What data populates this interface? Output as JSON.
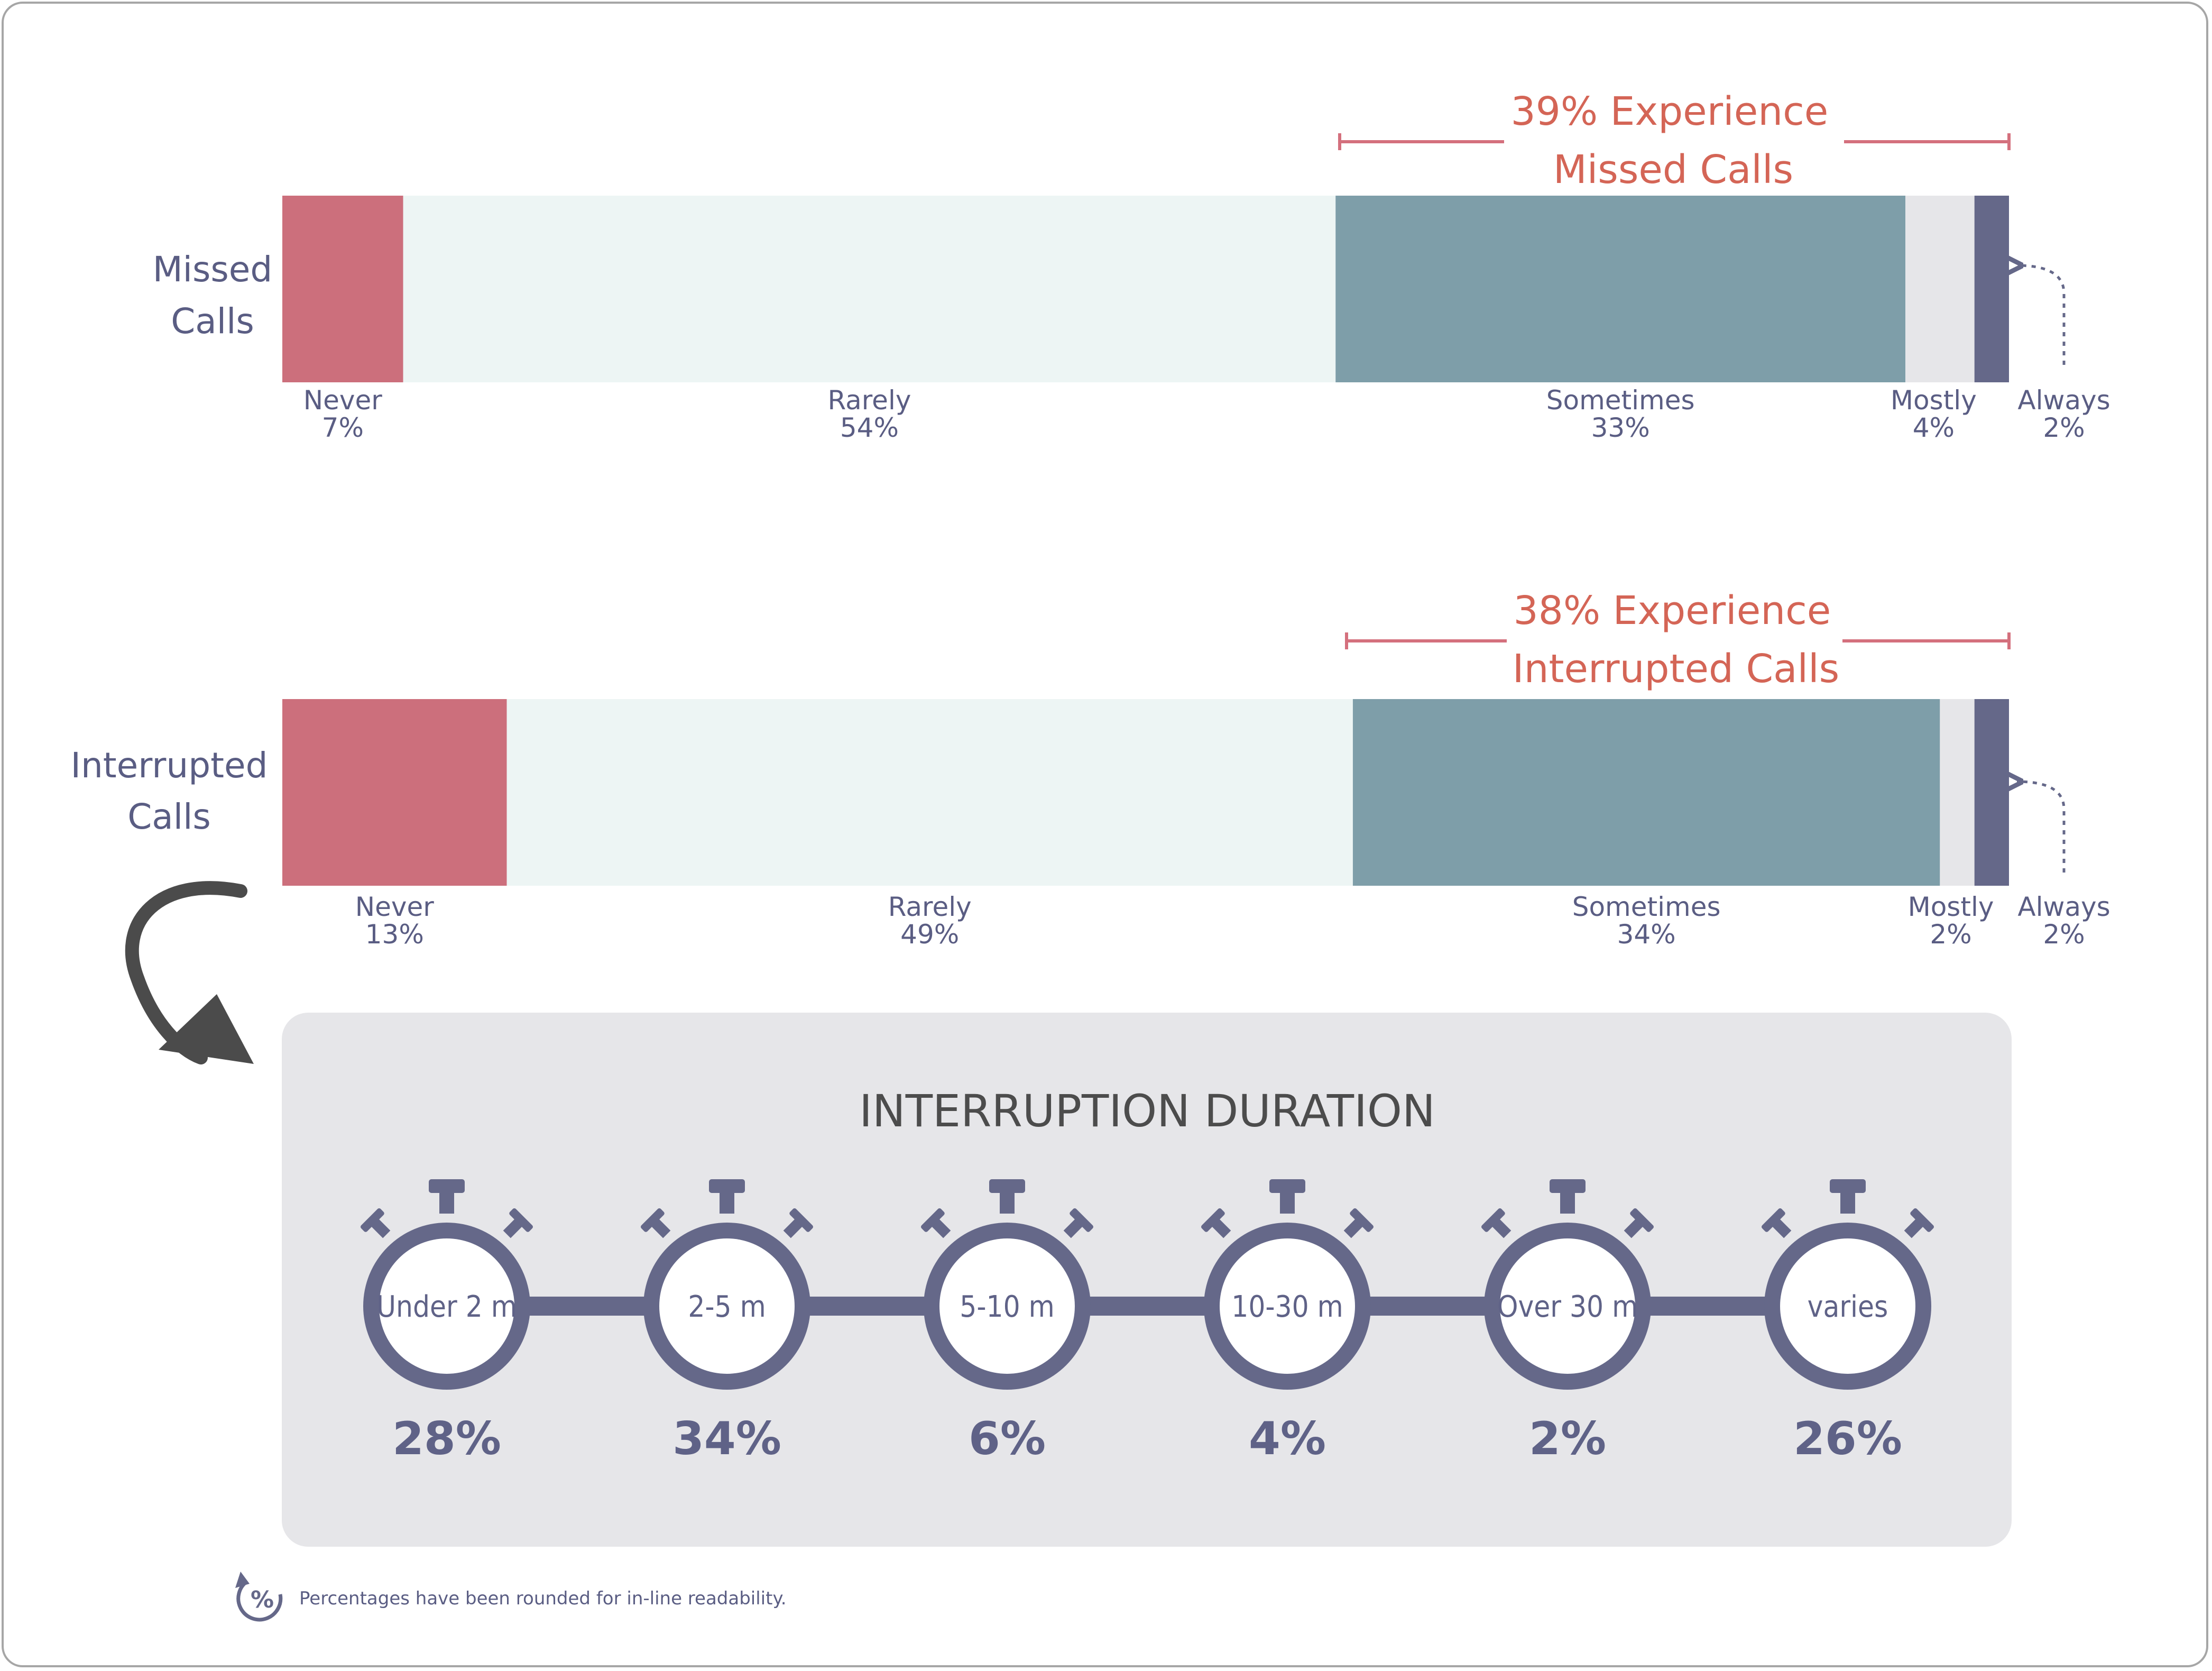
{
  "chart_data": [
    {
      "type": "bar",
      "orientation": "horizontal",
      "stacked": true,
      "row_label": [
        "Missed",
        "Calls"
      ],
      "categories": [
        "Never",
        "Rarely",
        "Sometimes",
        "Mostly",
        "Always"
      ],
      "values": [
        7,
        54,
        33,
        4,
        2
      ],
      "value_labels": [
        "7%",
        "54%",
        "33%",
        "4%",
        "2%"
      ],
      "colors": [
        "#cc6f7c",
        "#edf5f4",
        "#7e9ea9",
        "#e6e6e9",
        "#656889"
      ],
      "bracket": [
        "39% Experience",
        "Missed Calls"
      ]
    },
    {
      "type": "bar",
      "orientation": "horizontal",
      "stacked": true,
      "row_label": [
        "Interrupted",
        "Calls"
      ],
      "categories": [
        "Never",
        "Rarely",
        "Sometimes",
        "Mostly",
        "Always"
      ],
      "values": [
        13,
        49,
        34,
        2,
        2
      ],
      "value_labels": [
        "13%",
        "49%",
        "34%",
        "2%",
        "2%"
      ],
      "colors": [
        "#cc6f7c",
        "#edf5f4",
        "#7e9ea9",
        "#e6e6e9",
        "#656889"
      ],
      "bracket": [
        "38% Experience",
        "Interrupted Calls"
      ]
    },
    {
      "type": "table",
      "title": "INTERRUPTION DURATION",
      "categories": [
        "Under 2 m",
        "2-5 m",
        "5-10 m",
        "10-30 m",
        "Over 30 m",
        "varies"
      ],
      "values": [
        28,
        34,
        6,
        4,
        2,
        26
      ],
      "value_labels": [
        "28%",
        "34%",
        "6%",
        "4%",
        "2%",
        "26%"
      ]
    }
  ],
  "footnote": "Percentages have been rounded for in-line readability.",
  "icons": {
    "percent": "percent-refresh-icon",
    "arrow": "curved-arrow-icon",
    "timer": "stopwatch-icon"
  },
  "colors": {
    "accent": "#d46556",
    "primary": "#656889",
    "panel": "#e6e6e9"
  }
}
